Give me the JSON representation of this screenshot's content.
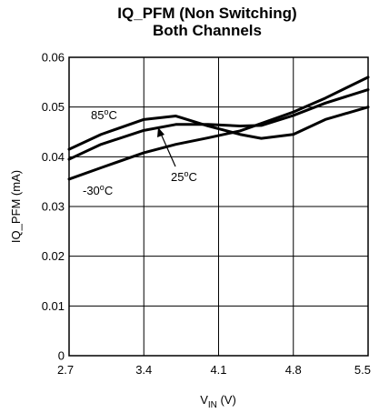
{
  "chart_data": {
    "type": "line",
    "title": "IQ_PFM (Non Switching)",
    "subtitle": "Both Channels",
    "xlabel": "V",
    "xlabel_subscript": "IN",
    "xlabel_unit": " (V)",
    "ylabel": "IQ_PFM (mA)",
    "xlim": [
      2.7,
      5.5
    ],
    "ylim": [
      0,
      0.06
    ],
    "xticks": [
      2.7,
      3.4,
      4.1,
      4.8,
      5.5
    ],
    "xtick_labels": [
      "2.7",
      "3.4",
      "4.1",
      "4.8",
      "5.5"
    ],
    "yticks": [
      0,
      0.01,
      0.02,
      0.03,
      0.04,
      0.05,
      0.06
    ],
    "ytick_labels": [
      "0",
      "0.01",
      "0.02",
      "0.03",
      "0.04",
      "0.05",
      "0.06"
    ],
    "grid": true,
    "series": [
      {
        "name": "85°C",
        "label_main": "85",
        "label_sup": "o",
        "label_tail": "C",
        "x": [
          2.7,
          3.0,
          3.4,
          3.7,
          4.0,
          4.3,
          4.5,
          4.8,
          5.1,
          5.5
        ],
        "y": [
          0.0415,
          0.0445,
          0.0475,
          0.0482,
          0.0462,
          0.0445,
          0.0437,
          0.0445,
          0.0475,
          0.05
        ]
      },
      {
        "name": "25°C",
        "label_main": "25",
        "label_sup": "o",
        "label_tail": "C",
        "x": [
          2.7,
          3.0,
          3.4,
          3.7,
          4.0,
          4.3,
          4.5,
          4.8,
          5.1,
          5.5
        ],
        "y": [
          0.0395,
          0.0425,
          0.0453,
          0.0465,
          0.0465,
          0.0462,
          0.0463,
          0.0483,
          0.0508,
          0.0535
        ]
      },
      {
        "name": "-30°C",
        "label_main": "-30",
        "label_sup": "o",
        "label_tail": "C",
        "x": [
          2.7,
          3.0,
          3.4,
          3.7,
          4.0,
          4.3,
          4.5,
          4.8,
          5.1,
          5.5
        ],
        "y": [
          0.0355,
          0.0378,
          0.0408,
          0.0425,
          0.0438,
          0.0452,
          0.0467,
          0.049,
          0.0518,
          0.056
        ]
      }
    ]
  }
}
